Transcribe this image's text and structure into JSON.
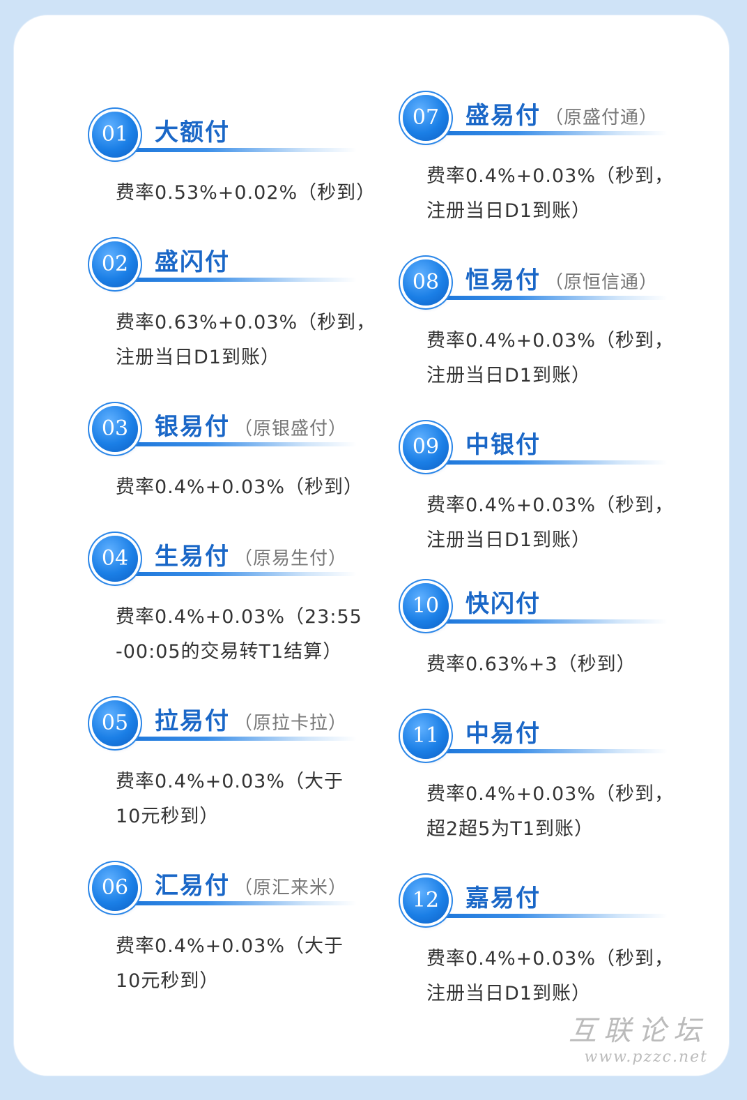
{
  "left": [
    {
      "no": "01",
      "name": "大额付",
      "formerly": "",
      "desc": "费率0.53%+0.02%（秒到）"
    },
    {
      "no": "02",
      "name": "盛闪付",
      "formerly": "",
      "desc": "费率0.63%+0.03%（秒到，\n注册当日D1到账）"
    },
    {
      "no": "03",
      "name": "银易付",
      "formerly": "（原银盛付）",
      "desc": "费率0.4%+0.03%（秒到）"
    },
    {
      "no": "04",
      "name": "生易付",
      "formerly": "（原易生付）",
      "desc": "费率0.4%+0.03%（23:55\n-00:05的交易转T1结算）"
    },
    {
      "no": "05",
      "name": "拉易付",
      "formerly": "（原拉卡拉）",
      "desc": "费率0.4%+0.03%（大于\n10元秒到）"
    },
    {
      "no": "06",
      "name": "汇易付",
      "formerly": "（原汇来米）",
      "desc": "费率0.4%+0.03%（大于\n10元秒到）"
    }
  ],
  "right": [
    {
      "no": "07",
      "name": "盛易付",
      "formerly": "（原盛付通）",
      "desc": "费率0.4%+0.03%（秒到，\n注册当日D1到账）"
    },
    {
      "no": "08",
      "name": "恒易付",
      "formerly": "（原恒信通）",
      "desc": "费率0.4%+0.03%（秒到，\n注册当日D1到账）"
    },
    {
      "no": "09",
      "name": "中银付",
      "formerly": "",
      "desc": "费率0.4%+0.03%（秒到，\n注册当日D1到账）"
    },
    {
      "no": "10",
      "name": "快闪付",
      "formerly": "",
      "desc": "费率0.63%+3（秒到）"
    },
    {
      "no": "11",
      "name": "中易付",
      "formerly": "",
      "desc": "费率0.4%+0.03%（秒到，\n超2超5为T1到账）"
    },
    {
      "no": "12",
      "name": "嘉易付",
      "formerly": "",
      "desc": "费率0.4%+0.03%（秒到，\n注册当日D1到账）"
    }
  ],
  "watermark": {
    "cn": "互联论坛",
    "url": "www.pzzc.net"
  }
}
